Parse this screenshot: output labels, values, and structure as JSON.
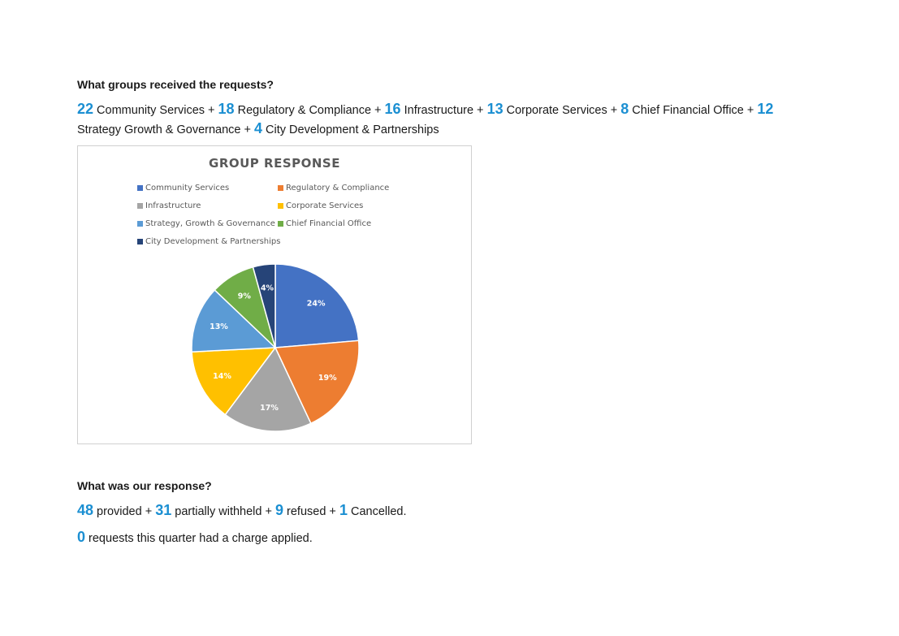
{
  "groups_section": {
    "heading": "What groups received the requests?",
    "line1": [
      {
        "num": "22",
        "label": " Community Services + "
      },
      {
        "num": "18",
        "label": " Regulatory & Compliance + "
      },
      {
        "num": "16",
        "label": " Infrastructure + "
      },
      {
        "num": "13",
        "label": " Corporate Services + "
      },
      {
        "num": "8",
        "label": " Chief Financial Office + "
      },
      {
        "num": "12",
        "label": ""
      }
    ],
    "line2": [
      {
        "num": "",
        "label": "Strategy Growth & Governance + "
      },
      {
        "num": "4",
        "label": " City Development & Partnerships"
      }
    ]
  },
  "chart_data": {
    "type": "pie",
    "title": "GROUP RESPONSE",
    "legend_position": "top",
    "categories": [
      "Community Services",
      "Regulatory & Compliance",
      "Infrastructure",
      "Corporate Services",
      "Strategy, Growth & Governance",
      "Chief Financial Office",
      "City Development & Partnerships"
    ],
    "values": [
      22,
      18,
      16,
      13,
      12,
      8,
      4
    ],
    "percent_labels": [
      "24%",
      "19%",
      "17%",
      "14%",
      "13%",
      "9%",
      "4%"
    ],
    "colors": [
      "#4472c4",
      "#ed7d31",
      "#a5a5a5",
      "#ffc000",
      "#5b9bd5",
      "#70ad47",
      "#264478"
    ]
  },
  "response_section": {
    "heading": "What was our response?",
    "line1": [
      {
        "num": "48",
        "label": " provided + "
      },
      {
        "num": "31",
        "label": " partially withheld + "
      },
      {
        "num": "9",
        "label": " refused + "
      },
      {
        "num": "1",
        "label": " Cancelled."
      }
    ],
    "line2": [
      {
        "num": "0",
        "label": " requests this quarter had a charge applied."
      }
    ]
  }
}
